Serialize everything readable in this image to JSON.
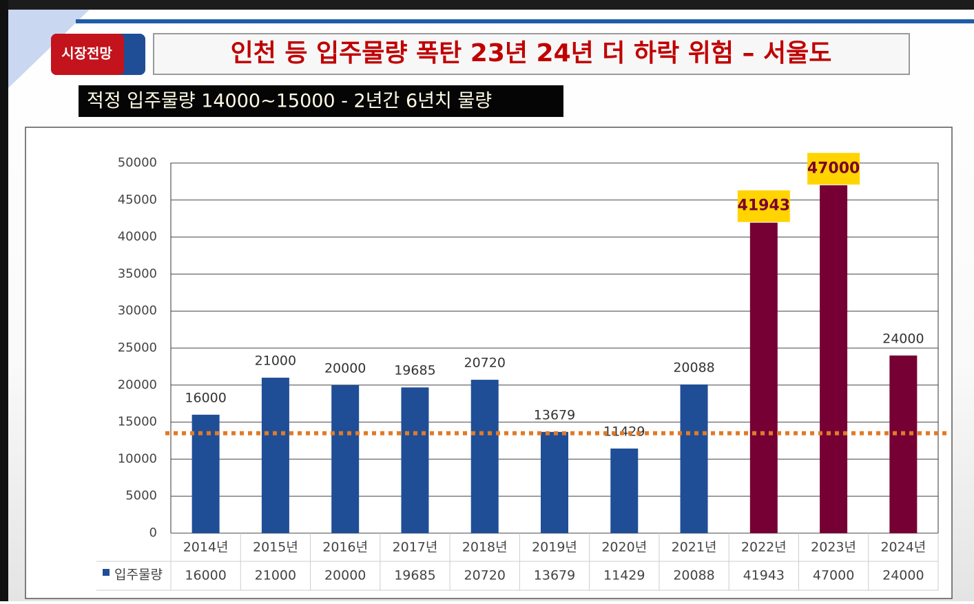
{
  "header": {
    "badge": "시장전망",
    "title": "인천 등 입주물량 폭탄  23년 24년 더 하락 위험 – 서울도",
    "subtitle": "적정 입주물량 14000~15000 - 2년간 6년치 물량"
  },
  "chart_data": {
    "type": "bar",
    "categories": [
      "2014년",
      "2015년",
      "2016년",
      "2017년",
      "2018년",
      "2019년",
      "2020년",
      "2021년",
      "2022년",
      "2023년",
      "2024년"
    ],
    "series": [
      {
        "name": "입주물량",
        "color": "#1f4e96",
        "values": [
          16000,
          21000,
          20000,
          19685,
          20720,
          13679,
          11429,
          20088,
          41943,
          47000,
          24000
        ],
        "colors": [
          "#1f4e96",
          "#1f4e96",
          "#1f4e96",
          "#1f4e96",
          "#1f4e96",
          "#1f4e96",
          "#1f4e96",
          "#1f4e96",
          "#760034",
          "#760034",
          "#760034"
        ],
        "highlighted": [
          false,
          false,
          false,
          false,
          false,
          false,
          false,
          false,
          true,
          true,
          false
        ]
      }
    ],
    "ylim": [
      0,
      50000
    ],
    "yticks": [
      0,
      5000,
      10000,
      15000,
      20000,
      25000,
      30000,
      35000,
      40000,
      45000,
      50000
    ],
    "grid": true,
    "reference_line": {
      "value": 13500,
      "color": "#e07b28"
    }
  }
}
